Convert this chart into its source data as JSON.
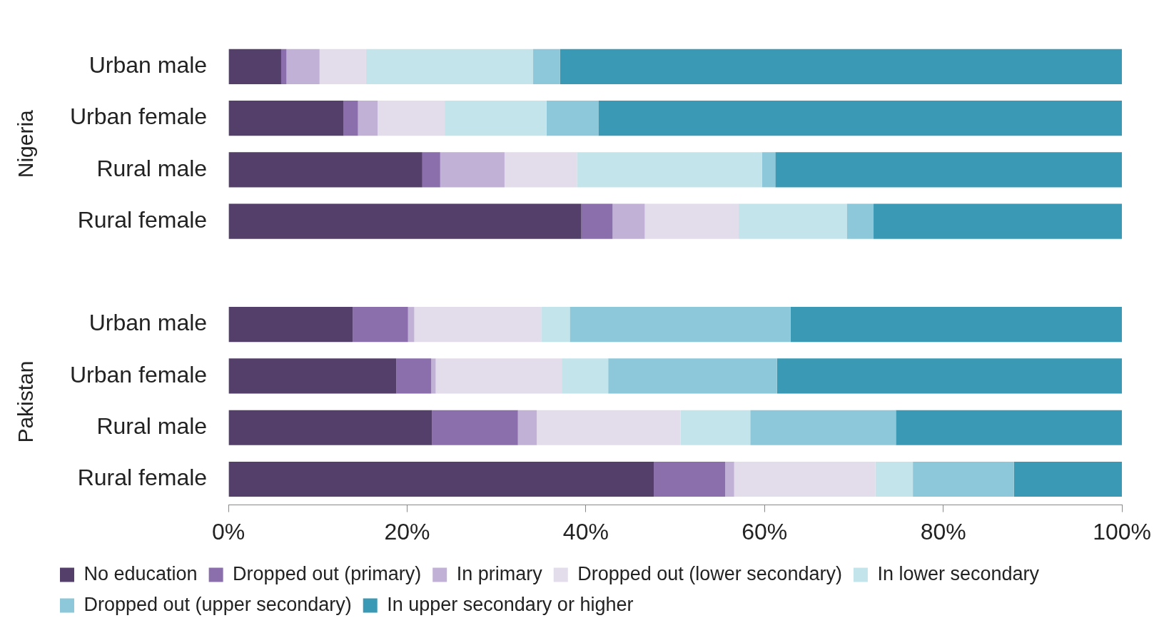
{
  "chart_data": {
    "type": "bar",
    "orientation": "horizontal",
    "stacked": true,
    "categories": [
      "Urban male",
      "Urban female",
      "Rural male",
      "Rural female",
      null,
      "Urban male",
      "Urban female",
      "Rural male",
      "Rural female"
    ],
    "series": [
      {
        "name": "No education",
        "color": "#533f6a",
        "values": [
          5.9,
          12.9,
          21.7,
          39.5,
          null,
          13.9,
          18.8,
          22.8,
          47.6
        ]
      },
      {
        "name": "Dropped out (primary)",
        "color": "#8a6fac",
        "values": [
          0.6,
          1.6,
          2.0,
          3.5,
          null,
          6.2,
          3.9,
          9.6,
          8.0
        ]
      },
      {
        "name": "In primary",
        "color": "#c2b1d6",
        "values": [
          3.7,
          2.2,
          7.2,
          3.6,
          null,
          0.7,
          0.5,
          2.1,
          1.0
        ]
      },
      {
        "name": "Dropped out (lower secondary)",
        "color": "#e3dcea",
        "values": [
          5.2,
          7.5,
          8.1,
          10.5,
          null,
          14.2,
          14.1,
          16.1,
          15.8
        ]
      },
      {
        "name": "In lower secondary",
        "color": "#c4e4ec",
        "values": [
          18.7,
          11.4,
          20.7,
          12.1,
          null,
          3.2,
          5.2,
          7.8,
          4.2
        ]
      },
      {
        "name": "Dropped out (upper secondary)",
        "color": "#8cc8d9",
        "values": [
          3.0,
          5.8,
          1.5,
          3.0,
          null,
          24.7,
          18.9,
          16.3,
          11.3
        ]
      },
      {
        "name": "In upper secondary or higher",
        "color": "#3a9ab6",
        "values": [
          62.9,
          58.6,
          38.8,
          27.8,
          null,
          37.1,
          38.6,
          25.3,
          12.1
        ]
      }
    ],
    "xlim": [
      0,
      100
    ],
    "xticks": [
      {
        "value": 0,
        "label": "0%"
      },
      {
        "value": 20,
        "label": "20%"
      },
      {
        "value": 40,
        "label": "40%"
      },
      {
        "value": 60,
        "label": "60%"
      },
      {
        "value": 80,
        "label": "80%"
      },
      {
        "value": 100,
        "label": "100%"
      }
    ],
    "annotations": [
      "Nigeria",
      "Pakistan"
    ],
    "grid": false,
    "legend": "bottom"
  }
}
